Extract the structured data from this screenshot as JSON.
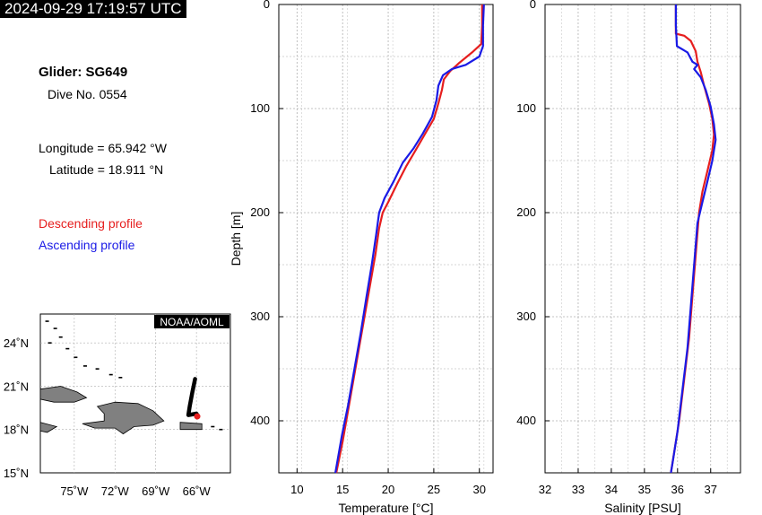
{
  "header": {
    "timestamp": "2024-09-29 17:19:57 UTC"
  },
  "info": {
    "glider": "Glider: SG649",
    "dive": "Dive No. 0554",
    "longitude": "Longitude = 65.942 °W",
    "latitude": "Latitude = 18.911 °N"
  },
  "legend": {
    "descending": "Descending profile",
    "ascending": "Ascending profile"
  },
  "colors": {
    "descending": "#e61e1e",
    "ascending": "#1a1ae6",
    "land": "#808080",
    "track": "#000000"
  },
  "map": {
    "badge": "NOAA/AOML",
    "lon_ticks": [
      "75˚W",
      "72˚W",
      "69˚W",
      "66˚W"
    ],
    "lat_ticks": [
      "24˚N",
      "21˚N",
      "18˚N",
      "15˚N"
    ],
    "track_lonlat": [
      [
        -66.1,
        21.5
      ],
      [
        -66.3,
        20.6
      ],
      [
        -66.5,
        19.6
      ],
      [
        -66.6,
        19.0
      ],
      [
        -66.0,
        19.1
      ],
      [
        -65.9,
        18.95
      ]
    ],
    "current_position": [
      -65.942,
      18.911
    ]
  },
  "chart_data": [
    {
      "type": "line",
      "xlabel": "Temperature [°C]",
      "ylabel": "Depth [m]",
      "xlim": [
        8,
        31.5
      ],
      "ylim": [
        450,
        0
      ],
      "x_ticks": [
        10,
        15,
        20,
        25,
        30
      ],
      "y_ticks": [
        0,
        100,
        200,
        300,
        400
      ],
      "grid": true,
      "series": [
        {
          "name": "Descending profile",
          "color": "#e61e1e",
          "points": [
            [
              30.3,
              0
            ],
            [
              30.3,
              20
            ],
            [
              30.2,
              38
            ],
            [
              29.2,
              46
            ],
            [
              27.8,
              56
            ],
            [
              26.8,
              64
            ],
            [
              26.1,
              72
            ],
            [
              25.9,
              82
            ],
            [
              25.5,
              95
            ],
            [
              25.0,
              110
            ],
            [
              24.0,
              125
            ],
            [
              23.0,
              140
            ],
            [
              22.0,
              155
            ],
            [
              21.0,
              172
            ],
            [
              20.0,
              190
            ],
            [
              19.4,
              200
            ],
            [
              19.0,
              215
            ],
            [
              18.6,
              240
            ],
            [
              18.0,
              270
            ],
            [
              17.4,
              300
            ],
            [
              16.8,
              330
            ],
            [
              16.2,
              360
            ],
            [
              15.6,
              390
            ],
            [
              15.0,
              420
            ],
            [
              14.3,
              450
            ]
          ]
        },
        {
          "name": "Ascending profile",
          "color": "#1a1ae6",
          "points": [
            [
              30.5,
              0
            ],
            [
              30.4,
              20
            ],
            [
              30.4,
              40
            ],
            [
              30.0,
              50
            ],
            [
              28.5,
              58
            ],
            [
              27.0,
              62
            ],
            [
              26.0,
              68
            ],
            [
              25.5,
              78
            ],
            [
              25.3,
              92
            ],
            [
              24.8,
              108
            ],
            [
              23.8,
              124
            ],
            [
              22.8,
              138
            ],
            [
              21.6,
              152
            ],
            [
              20.6,
              170
            ],
            [
              19.6,
              186
            ],
            [
              19.0,
              200
            ],
            [
              18.7,
              220
            ],
            [
              18.2,
              250
            ],
            [
              17.6,
              282
            ],
            [
              17.0,
              315
            ],
            [
              16.3,
              350
            ],
            [
              15.6,
              385
            ],
            [
              14.9,
              415
            ],
            [
              14.2,
              450
            ]
          ]
        }
      ]
    },
    {
      "type": "line",
      "xlabel": "Salinity [PSU]",
      "ylabel": "",
      "xlim": [
        32,
        37.9
      ],
      "ylim": [
        450,
        0
      ],
      "x_ticks": [
        32,
        33,
        34,
        35,
        36,
        37
      ],
      "y_ticks": [
        0,
        100,
        200,
        300,
        400
      ],
      "grid": true,
      "series": [
        {
          "name": "Descending profile",
          "color": "#e61e1e",
          "points": [
            [
              35.95,
              0
            ],
            [
              35.95,
              28
            ],
            [
              36.2,
              30
            ],
            [
              36.4,
              35
            ],
            [
              36.55,
              45
            ],
            [
              36.6,
              55
            ],
            [
              36.7,
              65
            ],
            [
              36.8,
              78
            ],
            [
              36.95,
              95
            ],
            [
              37.05,
              110
            ],
            [
              37.1,
              125
            ],
            [
              37.05,
              140
            ],
            [
              36.9,
              160
            ],
            [
              36.75,
              180
            ],
            [
              36.65,
              200
            ],
            [
              36.55,
              240
            ],
            [
              36.45,
              280
            ],
            [
              36.35,
              320
            ],
            [
              36.2,
              360
            ],
            [
              36.05,
              400
            ],
            [
              35.9,
              430
            ],
            [
              35.8,
              450
            ]
          ]
        },
        {
          "name": "Ascending profile",
          "color": "#1a1ae6",
          "points": [
            [
              35.95,
              0
            ],
            [
              35.95,
              20
            ],
            [
              35.98,
              40
            ],
            [
              36.3,
              46
            ],
            [
              36.45,
              55
            ],
            [
              36.6,
              58
            ],
            [
              36.5,
              62
            ],
            [
              36.7,
              70
            ],
            [
              36.85,
              82
            ],
            [
              37.0,
              98
            ],
            [
              37.1,
              115
            ],
            [
              37.15,
              130
            ],
            [
              37.05,
              150
            ],
            [
              36.9,
              170
            ],
            [
              36.75,
              190
            ],
            [
              36.6,
              210
            ],
            [
              36.5,
              250
            ],
            [
              36.4,
              290
            ],
            [
              36.3,
              330
            ],
            [
              36.15,
              370
            ],
            [
              36.0,
              410
            ],
            [
              35.85,
              440
            ],
            [
              35.8,
              450
            ]
          ]
        }
      ]
    }
  ]
}
